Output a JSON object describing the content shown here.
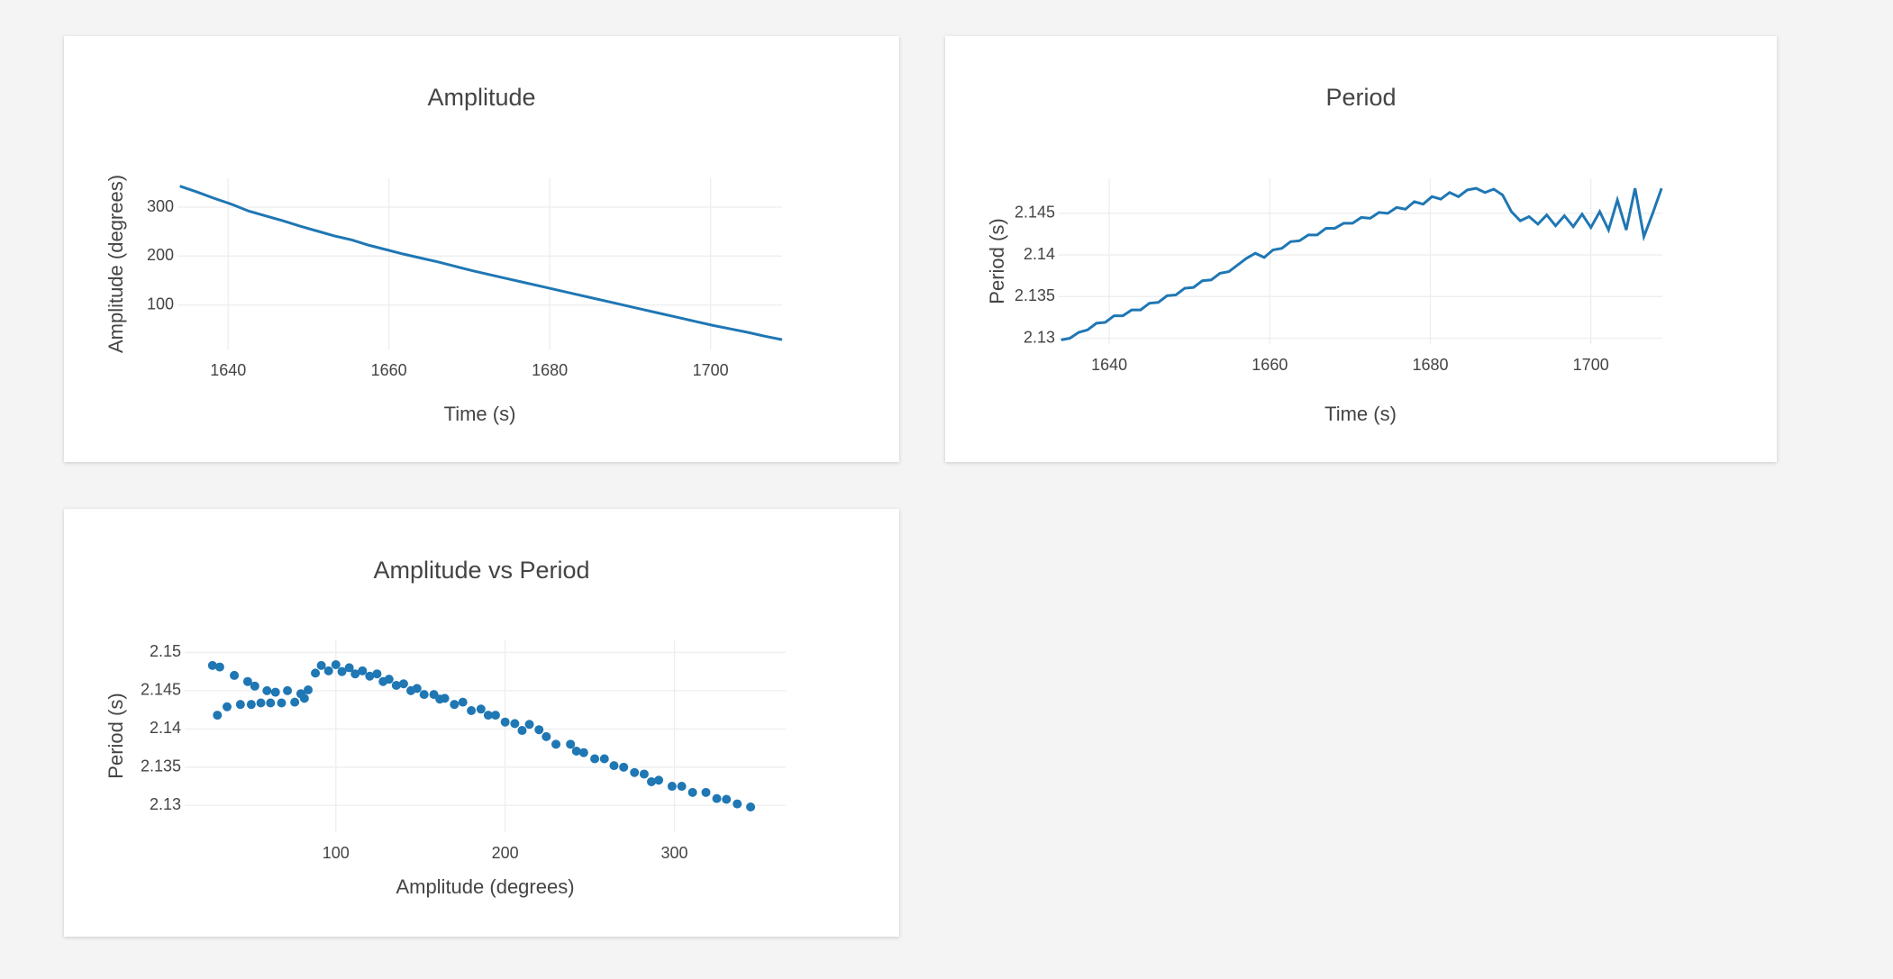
{
  "chart_data": [
    {
      "type": "line",
      "title": "Amplitude",
      "xlabel": "Time (s)",
      "ylabel": "Amplitude (degrees)",
      "color": "#1f77b4",
      "grid": true,
      "x": [
        1634.0,
        1636.14,
        1638.28,
        1640.42,
        1642.56,
        1644.7,
        1646.84,
        1648.98,
        1651.12,
        1653.26,
        1655.4,
        1657.54,
        1659.68,
        1661.82,
        1663.96,
        1666.1,
        1668.24,
        1670.38,
        1672.52,
        1674.66,
        1676.8,
        1678.94,
        1681.08,
        1683.22,
        1685.36,
        1687.5,
        1689.64,
        1691.78,
        1693.92,
        1696.06,
        1698.2,
        1700.34,
        1702.48,
        1704.62,
        1706.76,
        1708.9
      ],
      "values": [
        343,
        331,
        318,
        306,
        292,
        282,
        272,
        261,
        251,
        241,
        233,
        222,
        213,
        204,
        196,
        188,
        179,
        170,
        162,
        154,
        146,
        138,
        130,
        122,
        114,
        106,
        98,
        90,
        82,
        74,
        66,
        58,
        51,
        44,
        36,
        29
      ],
      "xlim": [
        1633.7,
        1708.9
      ],
      "xticks": [
        1640,
        1660,
        1680,
        1700
      ],
      "ylim": [
        9,
        359
      ],
      "yticks": [
        100,
        200,
        300
      ]
    },
    {
      "type": "line",
      "title": "Period",
      "xlabel": "Time (s)",
      "ylabel": "Period (s)",
      "color": "#1f77b4",
      "grid": true,
      "x": [
        1634.0,
        1635.1,
        1636.2,
        1637.3,
        1638.4,
        1639.5,
        1640.6,
        1641.7,
        1642.8,
        1643.9,
        1645.0,
        1646.1,
        1647.2,
        1648.3,
        1649.4,
        1650.5,
        1651.6,
        1652.7,
        1653.8,
        1654.9,
        1656.0,
        1657.1,
        1658.2,
        1659.3,
        1660.4,
        1661.5,
        1662.6,
        1663.7,
        1664.8,
        1665.9,
        1667.0,
        1668.1,
        1669.2,
        1670.3,
        1671.4,
        1672.5,
        1673.6,
        1674.7,
        1675.8,
        1676.9,
        1678.0,
        1679.1,
        1680.2,
        1681.3,
        1682.4,
        1683.5,
        1684.6,
        1685.7,
        1686.8,
        1687.9,
        1689.0,
        1690.1,
        1691.2,
        1692.3,
        1693.4,
        1694.5,
        1695.6,
        1696.7,
        1697.8,
        1698.9,
        1700.0,
        1701.1,
        1702.2,
        1703.3,
        1704.4,
        1705.5,
        1706.6,
        1707.7,
        1708.8
      ],
      "values": [
        2.1298,
        2.13,
        2.1307,
        2.131,
        2.1318,
        2.1319,
        2.1327,
        2.1327,
        2.1334,
        2.1334,
        2.1342,
        2.1343,
        2.1351,
        2.1352,
        2.136,
        2.1361,
        2.1369,
        2.137,
        2.1378,
        2.138,
        2.1388,
        2.1396,
        2.1402,
        2.1397,
        2.1406,
        2.1408,
        2.1416,
        2.1417,
        2.1424,
        2.1424,
        2.1432,
        2.1432,
        2.1438,
        2.1438,
        2.1445,
        2.1444,
        2.1451,
        2.145,
        2.1457,
        2.1455,
        2.1464,
        2.1461,
        2.147,
        2.1467,
        2.1475,
        2.147,
        2.1478,
        2.148,
        2.1475,
        2.1479,
        2.1472,
        2.1452,
        2.1441,
        2.1446,
        2.1437,
        2.1448,
        2.1435,
        2.1447,
        2.1434,
        2.1449,
        2.1433,
        2.1452,
        2.143,
        2.1466,
        2.143,
        2.148,
        2.1422,
        2.145,
        2.148
      ],
      "xlim": [
        1633.7,
        1708.9
      ],
      "xticks": [
        1640,
        1660,
        1680,
        1700
      ],
      "ylim": [
        2.1293,
        2.1492
      ],
      "yticks": [
        2.13,
        2.135,
        2.14,
        2.145
      ]
    },
    {
      "type": "scatter",
      "title": "Amplitude vs Period",
      "xlabel": "Amplitude (degrees)",
      "ylabel": "Period (s)",
      "color": "#1f77b4",
      "grid": true,
      "x": [
        27.1,
        31.4,
        30,
        35.7,
        40,
        43.6,
        47.9,
        50,
        52.1,
        55.7,
        59.3,
        61.4,
        64.3,
        67.9,
        71.4,
        75.7,
        79.3,
        81.4,
        83.6,
        87.9,
        91.4,
        95.7,
        100,
        103.6,
        107.9,
        111.4,
        115.7,
        120,
        124.3,
        127.9,
        131.4,
        135.7,
        140,
        144.3,
        147.9,
        152.1,
        157.9,
        161.4,
        164.3,
        170,
        175,
        180,
        185.7,
        190,
        194.3,
        200,
        205.7,
        210,
        214.3,
        220,
        224.3,
        230,
        238.6,
        242.1,
        246.4,
        252.9,
        258.6,
        264.3,
        270,
        276.4,
        282.1,
        286.4,
        290.7,
        298.6,
        304.3,
        310.7,
        318.6,
        325,
        330.7,
        337.1,
        345
      ],
      "values": [
        2.1483,
        2.1481,
        2.1418,
        2.1429,
        2.147,
        2.1432,
        2.1462,
        2.1432,
        2.1456,
        2.1434,
        2.145,
        2.1434,
        2.1448,
        2.1434,
        2.145,
        2.1435,
        2.1446,
        2.144,
        2.1451,
        2.1473,
        2.1483,
        2.1476,
        2.1484,
        2.1475,
        2.148,
        2.1472,
        2.1476,
        2.1469,
        2.1472,
        2.1462,
        2.1465,
        2.1457,
        2.1459,
        2.145,
        2.1453,
        2.1445,
        2.1445,
        2.1439,
        2.144,
        2.1432,
        2.1435,
        2.1424,
        2.1426,
        2.1418,
        2.1418,
        2.1409,
        2.1407,
        2.1398,
        2.1406,
        2.1399,
        2.139,
        2.138,
        2.138,
        2.1371,
        2.1369,
        2.1361,
        2.1361,
        2.1352,
        2.135,
        2.1343,
        2.1341,
        2.1331,
        2.1333,
        2.1325,
        2.1325,
        2.1317,
        2.1317,
        2.1309,
        2.1308,
        2.1302,
        2.1298
      ],
      "xlim": [
        10.7,
        365.7
      ],
      "xticks": [
        100,
        200,
        300
      ],
      "ylim": [
        2.1265,
        2.1517
      ],
      "yticks": [
        2.13,
        2.135,
        2.14,
        2.145,
        2.15
      ]
    }
  ]
}
